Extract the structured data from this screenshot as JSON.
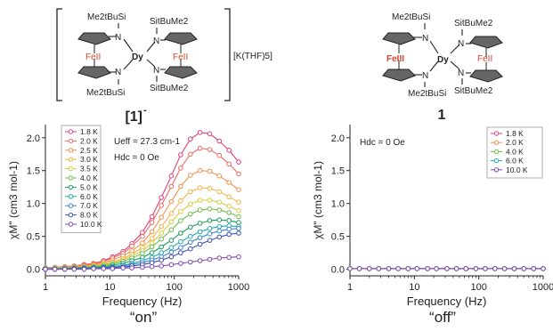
{
  "molecules": [
    {
      "label": "[1]",
      "label_sup": "-",
      "counterion": "[K(THF)5]",
      "atoms": {
        "tl": "Me2tBuSi",
        "bl": "Me2tBuSi",
        "tr": "SitBuMe2",
        "br": "SitBuMe2",
        "center": "Dy",
        "fe_left": "FeII",
        "fe_right": "FeII",
        "n": "N"
      }
    },
    {
      "label": "1",
      "atoms": {
        "tl": "Me2tBuSi",
        "bl": "Me2tBuSi",
        "tr": "SitBuMe2",
        "br": "SitBuMe2",
        "center": "Dy",
        "fe_left": "FeIII",
        "fe_right": "FeII",
        "n": "N"
      }
    }
  ],
  "chart_data": [
    {
      "type": "line",
      "xscale": "log",
      "xlim": [
        1,
        1000
      ],
      "ylim": [
        -0.1,
        2.2
      ],
      "xticks": [
        1,
        10,
        100,
        1000
      ],
      "xtick_labels": [
        "1",
        "10",
        "100",
        "1000"
      ],
      "yticks": [
        0.0,
        0.5,
        1.0,
        1.5,
        2.0
      ],
      "ytick_labels": [
        "0.0",
        "0.5",
        "1.0",
        "1.5",
        "2.0"
      ],
      "xlabel": "Frequency (Hz)",
      "ylabel": "χM\" (cm3 mol-1)",
      "annotations": [
        "Ueff = 27.3 cm-1",
        "Hdc = 0 Oe"
      ],
      "legend": "top-left",
      "caption": "“on”",
      "x": [
        1,
        1.4,
        2,
        2.8,
        4,
        5.6,
        8,
        11,
        16,
        22,
        32,
        45,
        63,
        90,
        126,
        178,
        251,
        355,
        501,
        708,
        1000
      ],
      "series": [
        {
          "name": "1.8 K",
          "color": "#e0407a",
          "values": [
            0.02,
            0.03,
            0.04,
            0.05,
            0.07,
            0.09,
            0.13,
            0.19,
            0.27,
            0.39,
            0.56,
            0.8,
            1.09,
            1.42,
            1.74,
            1.98,
            2.08,
            2.06,
            1.95,
            1.81,
            1.63
          ]
        },
        {
          "name": "2.0 K",
          "color": "#ec6a63",
          "values": [
            0.02,
            0.03,
            0.04,
            0.05,
            0.06,
            0.08,
            0.12,
            0.17,
            0.24,
            0.35,
            0.5,
            0.71,
            0.97,
            1.26,
            1.54,
            1.75,
            1.84,
            1.82,
            1.73,
            1.6,
            1.45
          ]
        },
        {
          "name": "2.5 K",
          "color": "#f0914f",
          "values": [
            0.02,
            0.02,
            0.03,
            0.04,
            0.05,
            0.07,
            0.1,
            0.14,
            0.2,
            0.28,
            0.4,
            0.57,
            0.79,
            1.03,
            1.26,
            1.43,
            1.5,
            1.49,
            1.42,
            1.32,
            1.21
          ]
        },
        {
          "name": "3.0 K",
          "color": "#f3b347",
          "values": [
            0.01,
            0.02,
            0.02,
            0.03,
            0.04,
            0.06,
            0.08,
            0.11,
            0.16,
            0.23,
            0.33,
            0.47,
            0.65,
            0.85,
            1.04,
            1.18,
            1.24,
            1.23,
            1.18,
            1.1,
            1.02
          ]
        },
        {
          "name": "3.5 K",
          "color": "#d9cb44",
          "values": [
            0.01,
            0.02,
            0.02,
            0.03,
            0.04,
            0.05,
            0.07,
            0.1,
            0.14,
            0.2,
            0.28,
            0.4,
            0.55,
            0.72,
            0.88,
            0.99,
            1.05,
            1.05,
            1.02,
            0.96,
            0.89
          ]
        },
        {
          "name": "4.0 K",
          "color": "#6fbe4c",
          "values": [
            0.01,
            0.01,
            0.02,
            0.02,
            0.03,
            0.04,
            0.06,
            0.08,
            0.12,
            0.17,
            0.24,
            0.34,
            0.46,
            0.6,
            0.74,
            0.84,
            0.9,
            0.92,
            0.9,
            0.86,
            0.8
          ]
        },
        {
          "name": "5.0 K",
          "color": "#1f9a5c",
          "values": [
            0.01,
            0.01,
            0.01,
            0.02,
            0.02,
            0.03,
            0.04,
            0.06,
            0.09,
            0.13,
            0.18,
            0.25,
            0.34,
            0.44,
            0.55,
            0.64,
            0.7,
            0.74,
            0.75,
            0.74,
            0.71
          ]
        },
        {
          "name": "6.0 K",
          "color": "#22a7b0",
          "values": [
            0.01,
            0.01,
            0.01,
            0.01,
            0.02,
            0.02,
            0.03,
            0.04,
            0.06,
            0.09,
            0.13,
            0.18,
            0.25,
            0.33,
            0.42,
            0.5,
            0.57,
            0.62,
            0.65,
            0.66,
            0.65
          ]
        },
        {
          "name": "7.0 K",
          "color": "#3b87c9",
          "values": [
            0.0,
            0.0,
            0.01,
            0.01,
            0.01,
            0.02,
            0.02,
            0.03,
            0.05,
            0.07,
            0.1,
            0.14,
            0.19,
            0.26,
            0.33,
            0.41,
            0.48,
            0.54,
            0.58,
            0.61,
            0.62
          ]
        },
        {
          "name": "8.0 K",
          "color": "#3a4fb0",
          "values": [
            0.0,
            0.0,
            0.0,
            0.01,
            0.01,
            0.01,
            0.02,
            0.02,
            0.03,
            0.05,
            0.07,
            0.1,
            0.14,
            0.19,
            0.25,
            0.31,
            0.38,
            0.44,
            0.49,
            0.53,
            0.55
          ]
        },
        {
          "name": "10.0 K",
          "color": "#8048b0",
          "values": [
            0.0,
            0.0,
            0.0,
            0.0,
            0.0,
            0.01,
            0.01,
            0.01,
            0.02,
            0.02,
            0.03,
            0.04,
            0.05,
            0.07,
            0.09,
            0.11,
            0.13,
            0.15,
            0.17,
            0.18,
            0.19
          ]
        }
      ]
    },
    {
      "type": "line",
      "xscale": "log",
      "xlim": [
        1,
        1000
      ],
      "ylim": [
        -0.1,
        2.2
      ],
      "xticks": [
        1,
        10,
        100,
        1000
      ],
      "xtick_labels": [
        "1",
        "10",
        "100",
        "1000"
      ],
      "yticks": [
        0.0,
        0.5,
        1.0,
        1.5,
        2.0
      ],
      "ytick_labels": [
        "0.0",
        "0.5",
        "1.0",
        "1.5",
        "2.0"
      ],
      "xlabel": "Frequency (Hz)",
      "ylabel": "χM\" (cm3 mol-1)",
      "annotations": [
        "Hdc = 0 Oe"
      ],
      "legend": "top-right",
      "caption": "“off”",
      "x": [
        1,
        1.4,
        2,
        2.8,
        4,
        5.6,
        8,
        11,
        16,
        22,
        32,
        45,
        63,
        90,
        126,
        178,
        251,
        355,
        501,
        708,
        1000
      ],
      "series": [
        {
          "name": "1.8 K",
          "color": "#e0407a",
          "values": [
            0.01,
            0.01,
            0.01,
            0.01,
            0.01,
            0.01,
            0.01,
            0.01,
            0.01,
            0.01,
            0.01,
            0.01,
            0.01,
            0.01,
            0.01,
            0.01,
            0.01,
            0.01,
            0.01,
            0.01,
            0.01
          ]
        },
        {
          "name": "2.0 K",
          "color": "#f0914f",
          "values": [
            0.01,
            0.01,
            0.01,
            0.01,
            0.01,
            0.01,
            0.01,
            0.01,
            0.01,
            0.01,
            0.01,
            0.01,
            0.01,
            0.01,
            0.01,
            0.01,
            0.01,
            0.01,
            0.01,
            0.01,
            0.01
          ]
        },
        {
          "name": "4.0 K",
          "color": "#6fbe4c",
          "values": [
            0.01,
            0.01,
            0.01,
            0.01,
            0.01,
            0.01,
            0.01,
            0.01,
            0.01,
            0.01,
            0.01,
            0.01,
            0.01,
            0.01,
            0.01,
            0.01,
            0.01,
            0.01,
            0.01,
            0.01,
            0.01
          ]
        },
        {
          "name": "6.0 K",
          "color": "#22a7b0",
          "values": [
            0.01,
            0.01,
            0.01,
            0.01,
            0.01,
            0.01,
            0.01,
            0.01,
            0.01,
            0.01,
            0.01,
            0.01,
            0.01,
            0.01,
            0.01,
            0.01,
            0.01,
            0.01,
            0.01,
            0.01,
            0.01
          ]
        },
        {
          "name": "10.0 K",
          "color": "#8048b0",
          "values": [
            0.01,
            0.01,
            0.01,
            0.01,
            0.01,
            0.01,
            0.01,
            0.01,
            0.01,
            0.01,
            0.01,
            0.01,
            0.01,
            0.01,
            0.01,
            0.01,
            0.01,
            0.01,
            0.01,
            0.01,
            0.01
          ]
        }
      ]
    }
  ]
}
